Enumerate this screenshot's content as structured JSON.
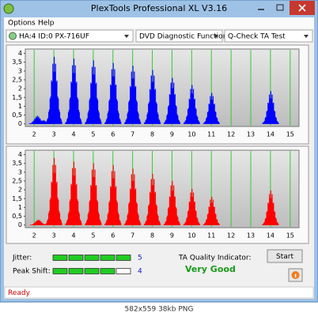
{
  "window": {
    "title": "PlexTools Professional XL V3.16"
  },
  "menu": [
    "Options",
    "Help"
  ],
  "toolbar": {
    "drive": "HA:4 ID:0  PX-716UF",
    "function": "DVD Diagnostic Functions",
    "test": "Q-Check TA Test"
  },
  "charts": [
    {
      "type": "histogram-peaks",
      "color": "#0000ff",
      "grid_color": "#33cc33",
      "xlim": [
        1.55,
        15.45
      ],
      "ylim": [
        -0.15,
        4.25
      ],
      "xticks": [
        2,
        3,
        4,
        5,
        6,
        7,
        8,
        9,
        10,
        11,
        12,
        13,
        14,
        15
      ],
      "yticks": [
        0,
        {
          "value": 0.5,
          "label": "0,5"
        },
        1,
        {
          "value": 1.5,
          "label": "1,5"
        },
        2,
        {
          "value": 2.5,
          "label": "2,5"
        },
        3,
        {
          "value": 3.5,
          "label": "3,5"
        },
        4
      ],
      "x": [
        2.15,
        2.45,
        3,
        4,
        5,
        6,
        7,
        8,
        9,
        10,
        11,
        14
      ],
      "values": [
        0.45,
        0.2,
        3.8,
        3.7,
        3.6,
        3.45,
        3.3,
        3.05,
        2.6,
        2.2,
        1.75,
        1.85
      ]
    },
    {
      "type": "histogram-peaks",
      "color": "#ff0000",
      "grid_color": "#33cc33",
      "xlim": [
        1.55,
        15.45
      ],
      "ylim": [
        -0.15,
        4.25
      ],
      "xticks": [
        2,
        3,
        4,
        5,
        6,
        7,
        8,
        9,
        10,
        11,
        12,
        13,
        14,
        15
      ],
      "yticks": [
        0,
        {
          "value": 0.5,
          "label": "0,5"
        },
        1,
        {
          "value": 1.5,
          "label": "1,5"
        },
        2,
        {
          "value": 2.5,
          "label": "2,5"
        },
        3,
        {
          "value": 3.5,
          "label": "3,5"
        },
        4
      ],
      "x": [
        2.2,
        3,
        4,
        5,
        6,
        7,
        8,
        9,
        10,
        11,
        14
      ],
      "values": [
        0.3,
        3.8,
        3.6,
        3.5,
        3.4,
        3.2,
        2.9,
        2.5,
        2.05,
        1.6,
        1.95
      ]
    }
  ],
  "metrics": [
    {
      "label": "Jitter:",
      "value": 5
    },
    {
      "label": "Peak Shift:",
      "value": 4
    }
  ],
  "quality": {
    "label": "TA Quality Indicator:",
    "result": "Very Good"
  },
  "start_button": "Start",
  "status": "Ready",
  "caption": "582x559 38kb PNG"
}
